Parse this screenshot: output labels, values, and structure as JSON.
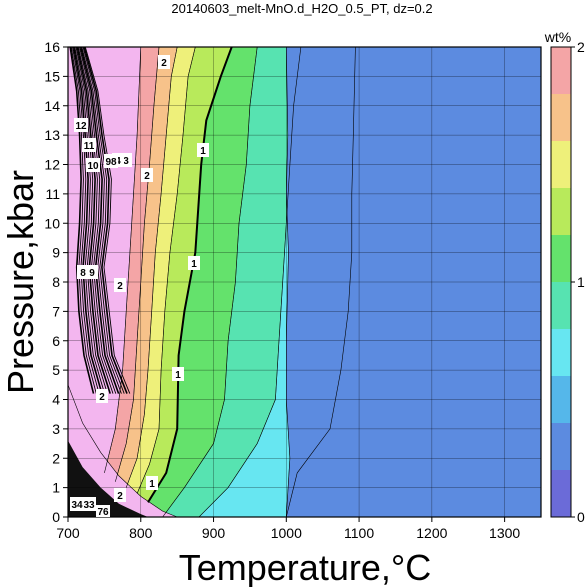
{
  "chart_data": {
    "type": "contour",
    "title": "20140603_melt-MnO.d_H2O_0.5_PT, dz=0.2",
    "xlabel": "Temperature,°C",
    "ylabel": "Pressure,kbar",
    "xlim": [
      700,
      1350
    ],
    "ylim": [
      0,
      16
    ],
    "x_ticks": [
      "700",
      "800",
      "900",
      "1000",
      "1100",
      "1200",
      "1300"
    ],
    "y_ticks": [
      "0",
      "1",
      "2",
      "3",
      "4",
      "5",
      "6",
      "7",
      "8",
      "9",
      "10",
      "11",
      "12",
      "13",
      "14",
      "15",
      "16"
    ],
    "grid": true,
    "colorbar": {
      "label": "wt%",
      "range": [
        0,
        2
      ],
      "ticks": [
        "0",
        "1",
        "2"
      ],
      "levels": [
        0,
        0.2,
        0.4,
        0.6,
        0.8,
        1.0,
        1.2,
        1.4,
        1.6,
        1.8,
        2.0
      ],
      "colors": [
        "#6b6bd8",
        "#5c8be0",
        "#55b7ea",
        "#67e6f1",
        "#57e3b1",
        "#64e26c",
        "#b8ea5b",
        "#eef07a",
        "#f7c28a",
        "#f4a5a6",
        "#f3b6ef"
      ]
    },
    "contour_labels": [
      "1",
      "2",
      "3",
      "4",
      "8",
      "9",
      "10",
      "11",
      "12",
      "33",
      "34",
      "76",
      "98"
    ],
    "isolines": [
      {
        "level": 0.2,
        "points": [
          [
            1000,
            0
          ],
          [
            1005,
            2
          ],
          [
            1000,
            4
          ],
          [
            1000,
            6
          ],
          [
            1003,
            9
          ],
          [
            1000,
            11
          ],
          [
            1002,
            13
          ],
          [
            1000,
            16
          ]
        ]
      },
      {
        "level": 0.4,
        "points": [
          [
            1000,
            0
          ],
          [
            1015,
            1.5
          ],
          [
            1060,
            3
          ],
          [
            1075,
            5
          ],
          [
            1085,
            7
          ],
          [
            1090,
            9
          ],
          [
            1090,
            11
          ],
          [
            1092,
            13
          ],
          [
            1095,
            16
          ]
        ]
      },
      {
        "level": 0.6,
        "points": [
          [
            880,
            0
          ],
          [
            920,
            1
          ],
          [
            960,
            2.5
          ],
          [
            985,
            4
          ],
          [
            990,
            6
          ],
          [
            995,
            8
          ],
          [
            1000,
            10
          ],
          [
            1005,
            12
          ],
          [
            1010,
            14
          ],
          [
            1020,
            16
          ]
        ]
      },
      {
        "level": 0.8,
        "points": [
          [
            830,
            0
          ],
          [
            860,
            1
          ],
          [
            900,
            2.5
          ],
          [
            915,
            4
          ],
          [
            920,
            6
          ],
          [
            930,
            8
          ],
          [
            935,
            10
          ],
          [
            945,
            12
          ],
          [
            950,
            14
          ],
          [
            960,
            16
          ]
        ]
      },
      {
        "level": 1.0,
        "points": [
          [
            810,
            0.5
          ],
          [
            835,
            1.5
          ],
          [
            850,
            3
          ],
          [
            852,
            5.5
          ],
          [
            860,
            7
          ],
          [
            875,
            9
          ],
          [
            883,
            12
          ],
          [
            890,
            13.5
          ],
          [
            910,
            15
          ],
          [
            925,
            16
          ]
        ]
      },
      {
        "level": 1.2,
        "points": [
          [
            795,
            0.8
          ],
          [
            812,
            1.8
          ],
          [
            825,
            3
          ],
          [
            828,
            5
          ],
          [
            833,
            7
          ],
          [
            840,
            9
          ],
          [
            850,
            11
          ],
          [
            858,
            13
          ],
          [
            865,
            15
          ],
          [
            875,
            16
          ]
        ]
      },
      {
        "level": 1.4,
        "points": [
          [
            780,
            1
          ],
          [
            795,
            2
          ],
          [
            805,
            3.5
          ],
          [
            810,
            5
          ],
          [
            815,
            7
          ],
          [
            820,
            9
          ],
          [
            828,
            11
          ],
          [
            835,
            13
          ],
          [
            842,
            15
          ],
          [
            850,
            16
          ]
        ]
      },
      {
        "level": 1.6,
        "points": [
          [
            765,
            1.2
          ],
          [
            780,
            2.5
          ],
          [
            790,
            4
          ],
          [
            795,
            6
          ],
          [
            800,
            8
          ],
          [
            805,
            10
          ],
          [
            812,
            12
          ],
          [
            818,
            14
          ],
          [
            825,
            16
          ]
        ]
      },
      {
        "level": 1.8,
        "points": [
          [
            750,
            1.5
          ],
          [
            765,
            3
          ],
          [
            775,
            5
          ],
          [
            780,
            7
          ],
          [
            785,
            9
          ],
          [
            790,
            11
          ],
          [
            795,
            13
          ],
          [
            800,
            16
          ]
        ]
      }
    ]
  }
}
